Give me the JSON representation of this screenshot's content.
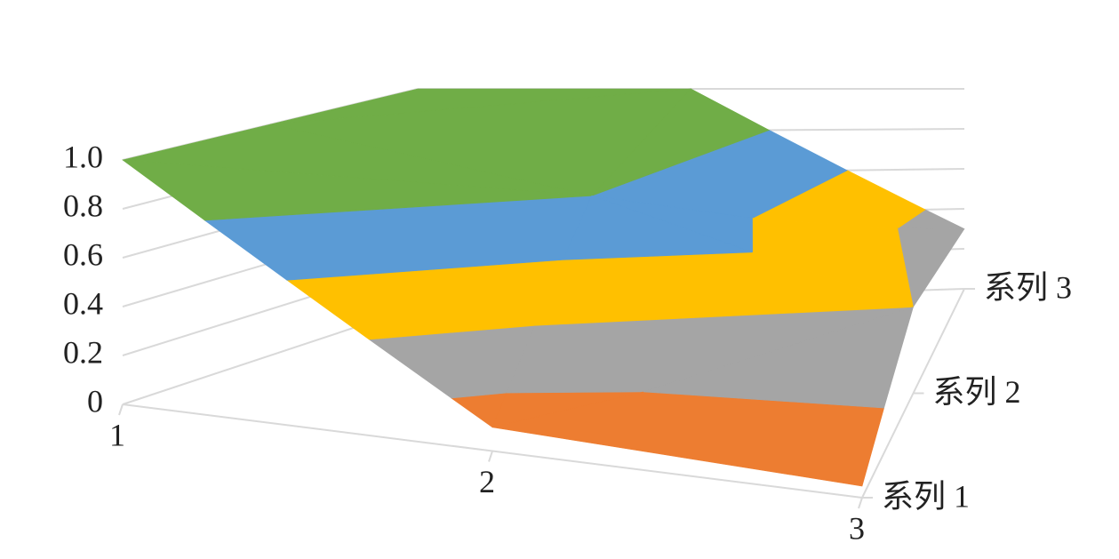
{
  "chart_data": {
    "type": "surface",
    "categories": [
      "1",
      "2",
      "3"
    ],
    "series": [
      {
        "name": "系列 1",
        "values": [
          1.0,
          0.1,
          0.05
        ]
      },
      {
        "name": "系列 2",
        "values": [
          1.0,
          0.8,
          0.4
        ]
      },
      {
        "name": "系列 3",
        "values": [
          1.0,
          1.0,
          0.3
        ]
      }
    ],
    "zlim": [
      0,
      1
    ],
    "zticks": [
      0,
      0.2,
      0.4,
      0.6,
      0.8,
      {
        "value": 1,
        "label": "1.0"
      }
    ],
    "colors": [
      "#ed7d31",
      "#a5a5a5",
      "#ffc000",
      "#5b9bd5",
      "#70ad47"
    ],
    "grid": true
  }
}
